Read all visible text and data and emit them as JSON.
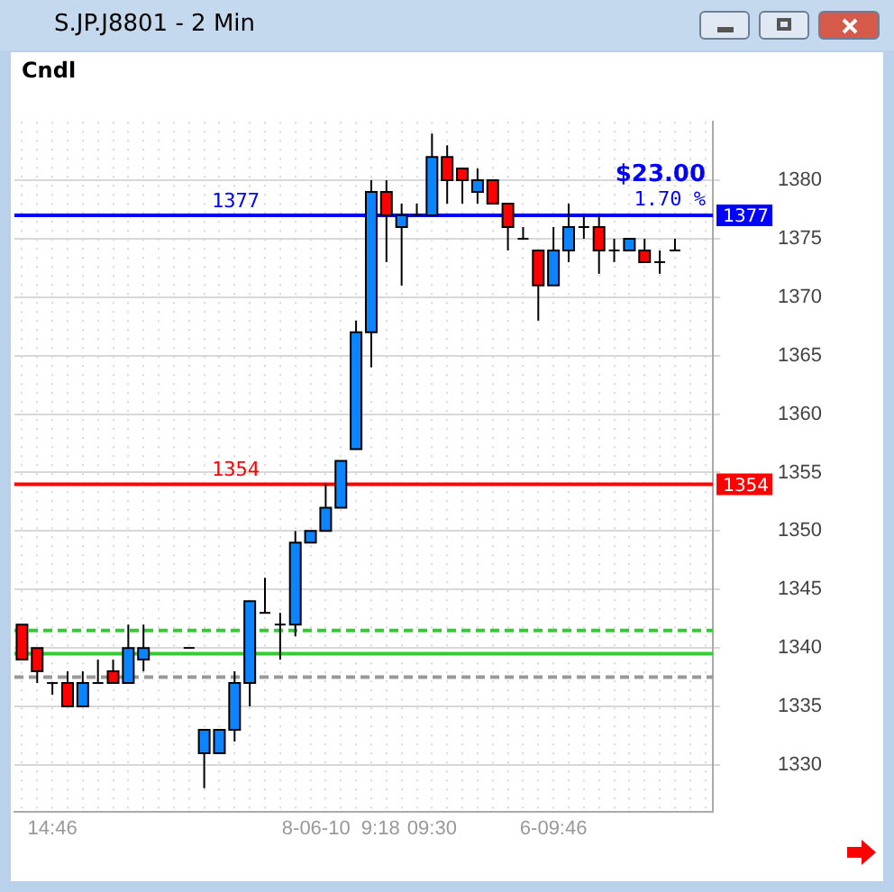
{
  "chart_data": {
    "type": "candlestick",
    "title": "S.JP.J8801 - 2 Min",
    "subtitle": "Cndl",
    "categories": [
      null,
      null,
      "14:46",
      null,
      null,
      null,
      null,
      null,
      null,
      null,
      null,
      null,
      null,
      null,
      null,
      null,
      null,
      null,
      null,
      null,
      null,
      "8-06-10  9:18",
      null,
      null,
      null,
      null,
      null,
      "09:30",
      null,
      null,
      null,
      null,
      null,
      null,
      null,
      "6-09:46",
      null,
      null,
      null,
      null,
      null,
      null,
      null,
      null,
      null,
      null
    ],
    "ohlc": [
      [
        1342,
        1342,
        1339,
        1339
      ],
      [
        1340,
        1340,
        1337,
        1338
      ],
      [
        1337,
        1337,
        1336,
        1337
      ],
      [
        1337,
        1338,
        1335,
        1335
      ],
      [
        1335,
        1338,
        1335,
        1337
      ],
      [
        1337,
        1339,
        1337,
        1337
      ],
      [
        1338,
        1339,
        1337,
        1337
      ],
      [
        1337,
        1342,
        1337,
        1340
      ],
      [
        1339,
        1342,
        1338,
        1340
      ],
      null,
      null,
      [
        1340,
        1340,
        1340,
        1340
      ],
      [
        1331,
        1333,
        1328,
        1333
      ],
      [
        1331,
        1333,
        1331,
        1333
      ],
      [
        1333,
        1338,
        1332,
        1337
      ],
      [
        1337,
        1344,
        1335,
        1344
      ],
      [
        1343,
        1346,
        1343,
        1343
      ],
      [
        1342,
        1343,
        1339,
        1342
      ],
      [
        1342,
        1350,
        1341,
        1349
      ],
      [
        1349,
        1350,
        1349,
        1350
      ],
      [
        1350,
        1354,
        1350,
        1352
      ],
      [
        1352,
        1356,
        1352,
        1356
      ],
      [
        1357,
        1368,
        1357,
        1367
      ],
      [
        1367,
        1380,
        1364,
        1379
      ],
      [
        1379,
        1380,
        1373,
        1377
      ],
      [
        1376,
        1378,
        1371,
        1377
      ],
      [
        1377,
        1378,
        1377,
        1377
      ],
      [
        1377,
        1384,
        1377,
        1382
      ],
      [
        1382,
        1383,
        1378,
        1380
      ],
      [
        1381,
        1381,
        1378,
        1380
      ],
      [
        1379,
        1381,
        1378,
        1380
      ],
      [
        1380,
        1380,
        1378,
        1378
      ],
      [
        1378,
        1378,
        1374,
        1376
      ],
      [
        1375,
        1376,
        1375,
        1375
      ],
      [
        1374,
        1374,
        1368,
        1371
      ],
      [
        1371,
        1376,
        1371,
        1374
      ],
      [
        1374,
        1378,
        1373,
        1376
      ],
      [
        1376,
        1377,
        1375,
        1376
      ],
      [
        1376,
        1377,
        1372,
        1374
      ],
      [
        1374,
        1375,
        1373,
        1374
      ],
      [
        1374,
        1375,
        1374,
        1375
      ],
      [
        1374,
        1375,
        1373,
        1373
      ],
      [
        1373,
        1374,
        1372,
        1373
      ],
      [
        1374,
        1375,
        1374,
        1374
      ],
      null,
      null
    ],
    "colors": [
      "#ff0000",
      "#ff0000",
      "#000000",
      "#ff0000",
      "#0a84ff",
      "#000000",
      "#ff0000",
      "#0a84ff",
      "#0a84ff",
      null,
      null,
      "#000000",
      "#0a84ff",
      "#0a84ff",
      "#0a84ff",
      "#0a84ff",
      "#000000",
      "#000000",
      "#0a84ff",
      "#0a84ff",
      "#0a84ff",
      "#0a84ff",
      "#0a84ff",
      "#0a84ff",
      "#ff0000",
      "#0a84ff",
      "#000000",
      "#0a84ff",
      "#ff0000",
      "#ff0000",
      "#0a84ff",
      "#ff0000",
      "#ff0000",
      "#000000",
      "#ff0000",
      "#0a84ff",
      "#0a84ff",
      "#000000",
      "#ff0000",
      "#000000",
      "#0a84ff",
      "#ff0000",
      "#000000",
      "#000000",
      null,
      null
    ],
    "ylim": [
      1326,
      1385
    ],
    "yticks": [
      1330,
      1335,
      1340,
      1345,
      1350,
      1355,
      1360,
      1365,
      1370,
      1375,
      1380
    ],
    "ref_lines": [
      {
        "axis": "y",
        "value": 1377,
        "label": "1377",
        "color": "#0000ff",
        "line_style": "solid"
      },
      {
        "axis": "y",
        "value": 1354,
        "label": "1354",
        "color": "#ff0000",
        "line_style": "solid"
      },
      {
        "axis": "y",
        "value": 1341.5,
        "color": "#33cc33",
        "line_style": "dashed"
      },
      {
        "axis": "y",
        "value": 1339.5,
        "color": "#33cc33",
        "line_style": "solid"
      },
      {
        "axis": "y",
        "value": 1337.5,
        "color": "#999999",
        "line_style": "dashed"
      }
    ],
    "annotations": [
      {
        "text": "$23.00",
        "y": 1377
      },
      {
        "text": "1.70 %",
        "y": 1377
      }
    ],
    "grid": true
  }
}
